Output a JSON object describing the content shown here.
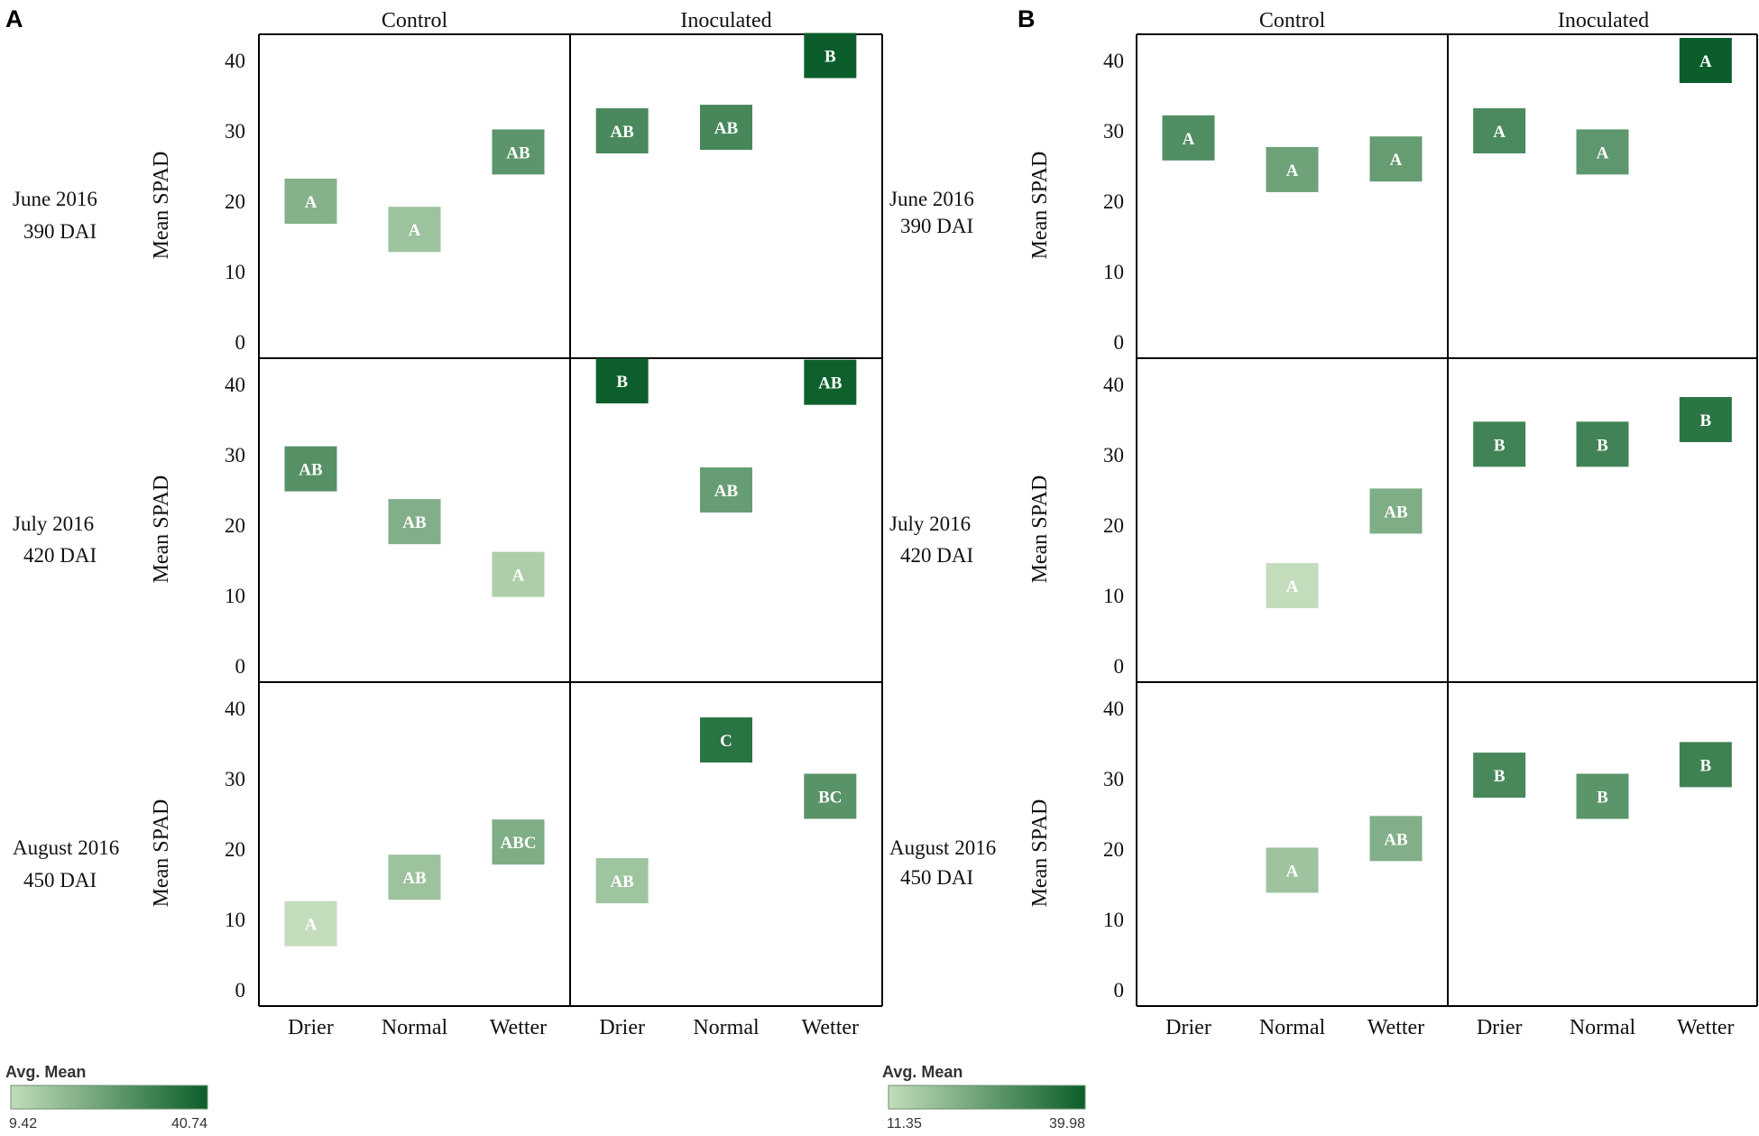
{
  "colors": {
    "scale_low": "#c3dcbc",
    "scale_high": "#0b5e2b",
    "frame": "#000000",
    "text": "#111111",
    "legend_text": "#333333"
  },
  "row_labels": [
    {
      "month": "June 2016",
      "dai": "390 DAI"
    },
    {
      "month": "July 2016",
      "dai": "420 DAI"
    },
    {
      "month": "August 2016",
      "dai": "450 DAI"
    }
  ],
  "chart_data": [
    {
      "type": "heatmap",
      "panel_label": "A",
      "group_headers": [
        "Control",
        "Inoculated"
      ],
      "categories": [
        "Drier",
        "Normal",
        "Wetter"
      ],
      "ylabel": "Mean SPAD",
      "ylim": [
        0,
        45
      ],
      "yticks": [
        0,
        10,
        20,
        30,
        40
      ],
      "legend": {
        "title": "Avg. Mean",
        "min_label": "9.42",
        "max_label": "40.74",
        "min": 9.42,
        "max": 40.74
      },
      "rows": [
        {
          "period": "June 2016 / 390 DAI",
          "control": [
            {
              "value": 20,
              "letter": "A"
            },
            {
              "value": 16,
              "letter": "A"
            },
            {
              "value": 27,
              "letter": "AB"
            }
          ],
          "inoculated": [
            {
              "value": 30,
              "letter": "AB"
            },
            {
              "value": 30.5,
              "letter": "AB"
            },
            {
              "value": 40.7,
              "letter": "B"
            }
          ]
        },
        {
          "period": "July 2016 / 420 DAI",
          "control": [
            {
              "value": 28,
              "letter": "AB"
            },
            {
              "value": 20.5,
              "letter": "AB"
            },
            {
              "value": 13,
              "letter": "A"
            }
          ],
          "inoculated": [
            {
              "value": 40.5,
              "letter": "B"
            },
            {
              "value": 25,
              "letter": "AB"
            },
            {
              "value": 40.3,
              "letter": "AB"
            }
          ]
        },
        {
          "period": "August 2016 / 450 DAI",
          "control": [
            {
              "value": 9.4,
              "letter": "A"
            },
            {
              "value": 16,
              "letter": "AB"
            },
            {
              "value": 21,
              "letter": "ABC"
            }
          ],
          "inoculated": [
            {
              "value": 15.5,
              "letter": "AB"
            },
            {
              "value": 35.5,
              "letter": "C"
            },
            {
              "value": 27.5,
              "letter": "BC"
            }
          ]
        }
      ]
    },
    {
      "type": "heatmap",
      "panel_label": "B",
      "group_headers": [
        "Control",
        "Inoculated"
      ],
      "categories": [
        "Drier",
        "Normal",
        "Wetter"
      ],
      "ylabel": "Mean SPAD",
      "ylim": [
        0,
        45
      ],
      "yticks": [
        0,
        10,
        20,
        30,
        40
      ],
      "legend": {
        "title": "Avg. Mean",
        "min_label": "11.35",
        "max_label": "39.98",
        "min": 11.35,
        "max": 39.98
      },
      "rows": [
        {
          "period": "June 2016 / 390 DAI",
          "control": [
            {
              "value": 29,
              "letter": "A"
            },
            {
              "value": 24.5,
              "letter": "A"
            },
            {
              "value": 26,
              "letter": "A"
            }
          ],
          "inoculated": [
            {
              "value": 30,
              "letter": "A"
            },
            {
              "value": 27,
              "letter": "A"
            },
            {
              "value": 40,
              "letter": "A"
            }
          ]
        },
        {
          "period": "July 2016 / 420 DAI",
          "control": [
            null,
            {
              "value": 11.4,
              "letter": "A"
            },
            {
              "value": 22,
              "letter": "AB"
            }
          ],
          "inoculated": [
            {
              "value": 31.5,
              "letter": "B"
            },
            {
              "value": 31.5,
              "letter": "B"
            },
            {
              "value": 35,
              "letter": "B"
            }
          ]
        },
        {
          "period": "August 2016 / 450 DAI",
          "control": [
            null,
            {
              "value": 17,
              "letter": "A"
            },
            {
              "value": 21.5,
              "letter": "AB"
            }
          ],
          "inoculated": [
            {
              "value": 30.5,
              "letter": "B"
            },
            {
              "value": 27.5,
              "letter": "B"
            },
            {
              "value": 32,
              "letter": "B"
            }
          ]
        }
      ]
    }
  ]
}
